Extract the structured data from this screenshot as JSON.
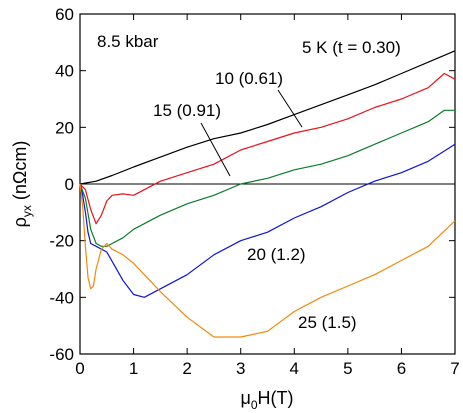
{
  "chart_data": {
    "type": "line",
    "xlabel": {
      "main": "μ",
      "sub": "0",
      "rest": "H(T)"
    },
    "ylabel": {
      "main": "ρ",
      "sub": "yx",
      "rest": " (nΩcm)"
    },
    "xlim": [
      0,
      7
    ],
    "ylim": [
      -60,
      60
    ],
    "x_ticks": [
      0,
      1,
      2,
      3,
      4,
      5,
      6,
      7
    ],
    "y_ticks": [
      -60,
      -40,
      -20,
      0,
      20,
      40,
      60
    ],
    "zero_line": true,
    "grid": false,
    "legend": "none",
    "annotations": {
      "pressure": "8.5 kbar",
      "labels": [
        {
          "id": "5K",
          "text": "5 K (t = 0.30)",
          "series": "5K"
        },
        {
          "id": "10K",
          "text": "10 (0.61)",
          "series": "10K"
        },
        {
          "id": "15K",
          "text": "15 (0.91)",
          "series": "15K"
        },
        {
          "id": "20K",
          "text": "20 (1.2)",
          "series": "20K"
        },
        {
          "id": "25K",
          "text": "25 (1.5)",
          "series": "25K"
        }
      ]
    },
    "series": [
      {
        "id": "5K",
        "color": "#000000",
        "x": [
          0,
          0.3,
          0.6,
          1.0,
          1.5,
          2,
          2.5,
          3,
          3.5,
          4,
          4.5,
          5,
          5.5,
          6,
          6.5,
          7
        ],
        "y": [
          0,
          1,
          3,
          6,
          9.5,
          13,
          16,
          18,
          21,
          24.5,
          28,
          31.5,
          35,
          39,
          43,
          47
        ]
      },
      {
        "id": "10K",
        "color": "#e8121b",
        "x": [
          0,
          0.1,
          0.2,
          0.3,
          0.4,
          0.5,
          0.6,
          0.8,
          1.0,
          1.2,
          1.5,
          2,
          2.5,
          3,
          3.5,
          4,
          4.5,
          5,
          5.5,
          6,
          6.5,
          6.8,
          7
        ],
        "y": [
          0,
          -2,
          -9,
          -14,
          -11,
          -6,
          -4,
          -3.5,
          -4,
          -2,
          1,
          4,
          7,
          12,
          15,
          18,
          20,
          23,
          27,
          30,
          34,
          39,
          37
        ]
      },
      {
        "id": "15K",
        "color": "#0a7d28",
        "x": [
          0,
          0.1,
          0.2,
          0.3,
          0.4,
          0.5,
          0.6,
          0.8,
          1.0,
          1.5,
          2,
          2.5,
          3,
          3.5,
          4,
          4.5,
          5,
          5.5,
          6,
          6.5,
          6.8,
          7
        ],
        "y": [
          0,
          -5,
          -16,
          -21,
          -22,
          -22,
          -21,
          -19,
          -16,
          -11,
          -7,
          -4,
          0,
          2,
          5,
          7,
          10,
          14,
          18,
          22,
          26,
          26
        ]
      },
      {
        "id": "20K",
        "color": "#0d14d6",
        "x": [
          0,
          0.05,
          0.1,
          0.15,
          0.2,
          0.3,
          0.5,
          0.8,
          1.0,
          1.2,
          1.5,
          2,
          2.5,
          3,
          3.5,
          4,
          4.5,
          5,
          5.5,
          6,
          6.5,
          7
        ],
        "y": [
          0,
          -4,
          -10,
          -17,
          -21,
          -22,
          -24,
          -34,
          -39,
          -40,
          -37,
          -32,
          -25,
          -20,
          -17,
          -12,
          -8,
          -3,
          1,
          4,
          8,
          14
        ]
      },
      {
        "id": "25K",
        "color": "#f08a0c",
        "x": [
          0,
          0.05,
          0.1,
          0.15,
          0.2,
          0.25,
          0.3,
          0.4,
          0.5,
          0.6,
          0.8,
          1.0,
          1.5,
          2,
          2.5,
          3,
          3.5,
          4,
          4.5,
          5,
          5.5,
          6,
          6.5,
          7
        ],
        "y": [
          0,
          -8,
          -22,
          -33,
          -37,
          -36,
          -30,
          -23,
          -21,
          -23,
          -25,
          -28,
          -38,
          -47,
          -54,
          -54,
          -52,
          -45,
          -40,
          -36,
          -32,
          -27,
          -22,
          -13
        ]
      }
    ]
  }
}
